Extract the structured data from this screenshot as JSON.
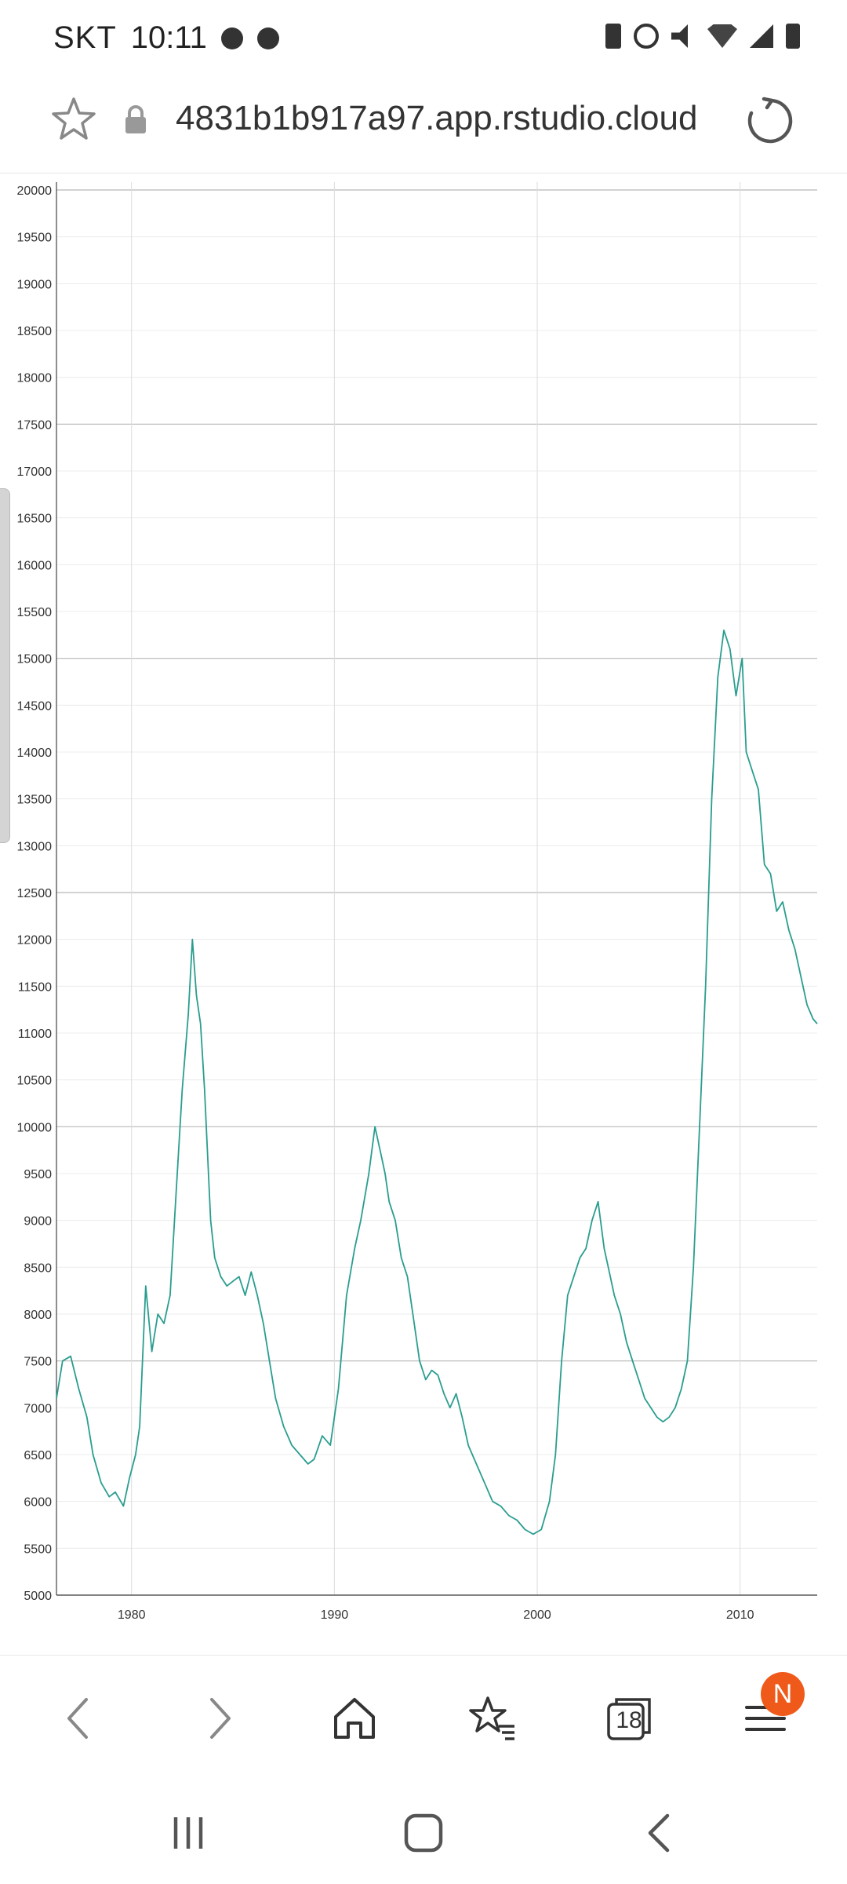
{
  "status_bar": {
    "carrier": "SKT",
    "time": "10:11",
    "left_icons": [
      "person-icon",
      "aperture-icon"
    ],
    "right_icons": [
      "recycle-battery-icon",
      "alarm-icon",
      "mute-icon",
      "wifi-icon",
      "signal-icon",
      "battery-icon"
    ]
  },
  "browser": {
    "url": "4831b1b917a97.app.rstudio.cloud",
    "icons": [
      "star-icon",
      "lock-icon",
      "reload-icon"
    ]
  },
  "bottom_nav": {
    "icons": [
      "back-icon",
      "forward-icon",
      "home-icon",
      "bookmarks-icon",
      "tabs-icon",
      "menu-icon"
    ],
    "tabs_count": "18",
    "menu_badge": "N"
  },
  "system_nav": {
    "icons": [
      "recents-icon",
      "home-square-icon",
      "system-back-icon"
    ]
  },
  "colors": {
    "line": "#2a9d8f",
    "grid_major": "#b8b8b8",
    "grid_minor": "#ececec",
    "badge": "#ef5a1a"
  },
  "chart_data": {
    "type": "line",
    "title": "",
    "xlabel": "",
    "ylabel": "",
    "xlim": [
      1976.3,
      2013.8
    ],
    "ylim": [
      5000,
      20000
    ],
    "x_ticks": [
      1980,
      1990,
      2000,
      2010
    ],
    "y_ticks": [
      5000,
      5500,
      6000,
      6500,
      7000,
      7500,
      8000,
      8500,
      9000,
      9500,
      10000,
      10500,
      11000,
      11500,
      12000,
      12500,
      13000,
      13500,
      14000,
      14500,
      15000,
      15500,
      16000,
      16500,
      17000,
      17500,
      18000,
      18500,
      19000,
      19500,
      20000
    ],
    "grid": true,
    "series": [
      {
        "x": [
          1976.3,
          1976.6,
          1977.0,
          1977.4,
          1977.8,
          1978.1,
          1978.5,
          1978.9,
          1979.2,
          1979.6,
          1979.9,
          1980.2,
          1980.4,
          1980.7,
          1981.0,
          1981.3,
          1981.6,
          1981.9,
          1982.2,
          1982.5,
          1982.8,
          1983.0,
          1983.2,
          1983.4,
          1983.6,
          1983.9,
          1984.1,
          1984.4,
          1984.7,
          1985.0,
          1985.3,
          1985.6,
          1985.9,
          1986.2,
          1986.5,
          1986.8,
          1987.1,
          1987.5,
          1987.9,
          1988.3,
          1988.7,
          1989.0,
          1989.4,
          1989.8,
          1990.2,
          1990.6,
          1991.0,
          1991.3,
          1991.7,
          1992.0,
          1992.3,
          1992.5,
          1992.7,
          1993.0,
          1993.3,
          1993.6,
          1993.9,
          1994.2,
          1994.5,
          1994.8,
          1995.1,
          1995.4,
          1995.7,
          1996.0,
          1996.3,
          1996.6,
          1997.0,
          1997.4,
          1997.8,
          1998.2,
          1998.6,
          1999.0,
          1999.4,
          1999.8,
          2000.2,
          2000.6,
          2000.9,
          2001.2,
          2001.5,
          2001.8,
          2002.1,
          2002.4,
          2002.7,
          2003.0,
          2003.3,
          2003.5,
          2003.8,
          2004.1,
          2004.4,
          2004.7,
          2005.0,
          2005.3,
          2005.6,
          2005.9,
          2006.2,
          2006.5,
          2006.8,
          2007.1,
          2007.4,
          2007.7,
          2008.0,
          2008.3,
          2008.6,
          2008.9,
          2009.2,
          2009.5,
          2009.8,
          2010.1,
          2010.3,
          2010.6,
          2010.9,
          2011.2,
          2011.5,
          2011.8,
          2012.1,
          2012.4,
          2012.7,
          2013.0,
          2013.3,
          2013.6,
          2013.8
        ],
        "values": [
          7100,
          7500,
          7550,
          7200,
          6900,
          6500,
          6200,
          6050,
          6100,
          5950,
          6250,
          6500,
          6800,
          8300,
          7600,
          8000,
          7900,
          8200,
          9300,
          10400,
          11200,
          12000,
          11400,
          11100,
          10400,
          9000,
          8600,
          8400,
          8300,
          8350,
          8400,
          8200,
          8450,
          8200,
          7900,
          7500,
          7100,
          6800,
          6600,
          6500,
          6400,
          6450,
          6700,
          6600,
          7200,
          8200,
          8700,
          9000,
          9500,
          10000,
          9700,
          9500,
          9200,
          9000,
          8600,
          8400,
          7950,
          7500,
          7300,
          7400,
          7350,
          7150,
          7000,
          7150,
          6900,
          6600,
          6400,
          6200,
          6000,
          5950,
          5850,
          5800,
          5700,
          5650,
          5700,
          6000,
          6500,
          7500,
          8200,
          8400,
          8600,
          8700,
          9000,
          9200,
          8700,
          8500,
          8200,
          8000,
          7700,
          7500,
          7300,
          7100,
          7000,
          6900,
          6850,
          6900,
          7000,
          7200,
          7500,
          8500,
          10000,
          11500,
          13500,
          14800,
          15300,
          15100,
          14600,
          15000,
          14000,
          13800,
          13600,
          12800,
          12700,
          12300,
          12400,
          12100,
          11900,
          11600,
          11300,
          11150,
          11100
        ]
      }
    ]
  }
}
